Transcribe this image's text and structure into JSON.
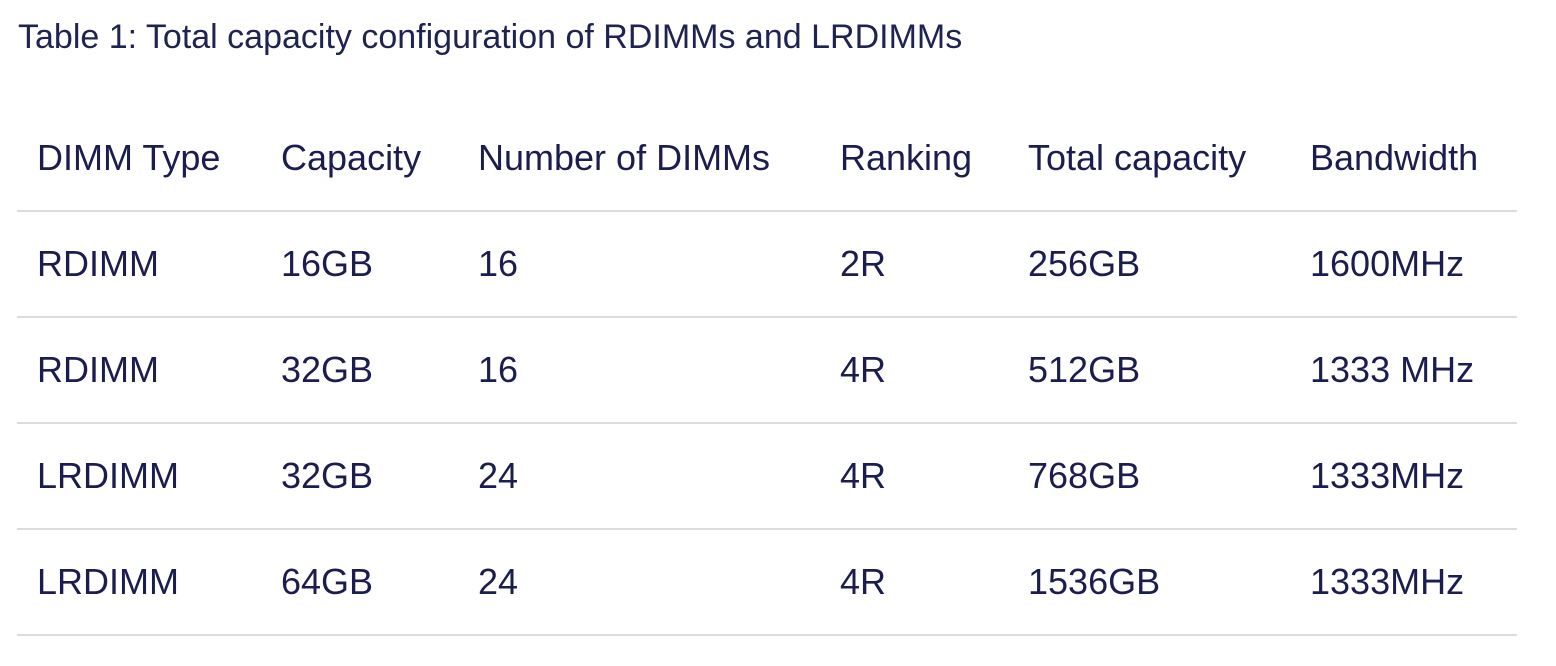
{
  "caption": "Table 1: Total capacity configuration of RDIMMs and LRDIMMs",
  "table": {
    "headers": [
      "DIMM Type",
      "Capacity",
      "Number of DIMMs",
      "Ranking",
      "Total capacity",
      "Bandwidth"
    ],
    "rows": [
      [
        "RDIMM",
        "16GB",
        "16",
        "2R",
        "256GB",
        "1600MHz"
      ],
      [
        "RDIMM",
        "32GB",
        "16",
        "4R",
        "512GB",
        "1333 MHz"
      ],
      [
        "LRDIMM",
        "32GB",
        "24",
        "4R",
        "768GB",
        "1333MHz"
      ],
      [
        "LRDIMM",
        "64GB",
        "24",
        "4R",
        "1536GB",
        "1333MHz"
      ]
    ]
  },
  "colors": {
    "text": "#1c1d4f",
    "divider": "#dcdcdc",
    "background": "#ffffff"
  }
}
